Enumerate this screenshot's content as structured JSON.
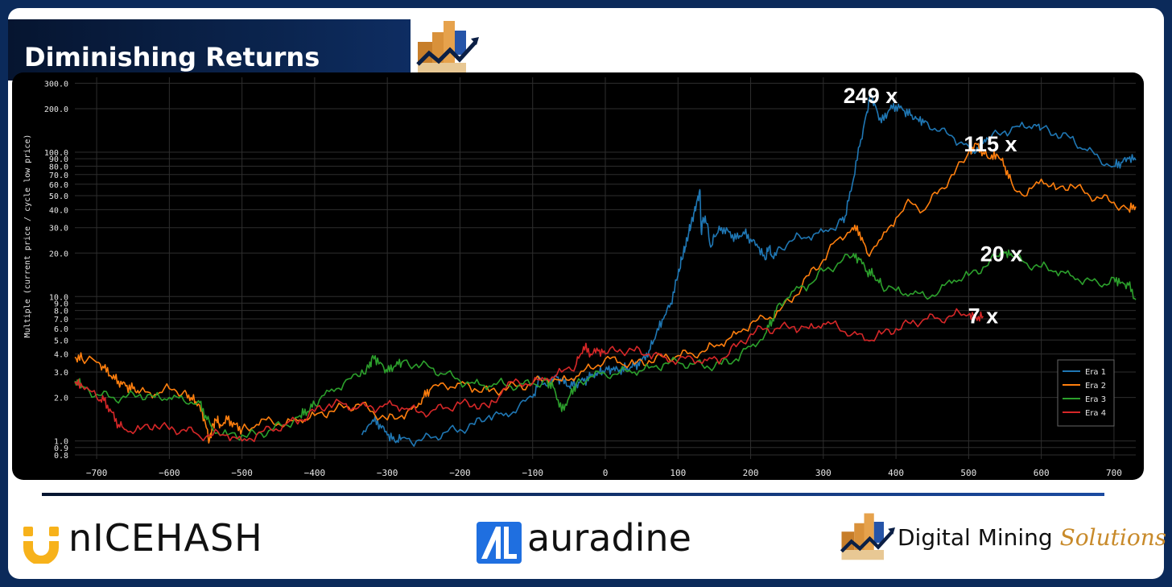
{
  "header": {
    "title": "Diminishing Returns"
  },
  "footer": {
    "nicehash": "nICEHASH",
    "auradine": "auradine",
    "dms_main": "Digital Mining",
    "dms_accent": "Solutions"
  },
  "colors": {
    "era1": "#1f77b4",
    "era2": "#ff7f0e",
    "era3": "#2ca02c",
    "era4": "#d62728"
  },
  "chart_data": {
    "type": "line",
    "ylabel": "Multiple (current price / cycle low price)",
    "xlabel": "",
    "y_scale": "log",
    "xlim": [
      -730,
      730
    ],
    "ylim": [
      0.75,
      330
    ],
    "grid": true,
    "legend_position": "bottom-right",
    "x_ticks": [
      -700,
      -600,
      -500,
      -400,
      -300,
      -200,
      -100,
      0,
      100,
      200,
      300,
      400,
      500,
      600,
      700
    ],
    "x_tick_labels": [
      "−700",
      "−600",
      "−500",
      "−400",
      "−300",
      "−200",
      "−100",
      "0",
      "100",
      "200",
      "300",
      "400",
      "500",
      "600",
      "700"
    ],
    "y_ticks": [
      0.8,
      0.9,
      1,
      2,
      3,
      4,
      5,
      6,
      7,
      8,
      9,
      10,
      20,
      30,
      40,
      50,
      60,
      70,
      80,
      90,
      100,
      200,
      300
    ],
    "y_tick_labels": [
      "0.8",
      "0.9",
      "1.0",
      "2.0",
      "3.0",
      "4.0",
      "5.0",
      "6.0",
      "7.0",
      "8.0",
      "9.0",
      "10.0",
      "20.0",
      "30.0",
      "40.0",
      "50.0",
      "60.0",
      "70.0",
      "80.0",
      "90.0",
      "100.0",
      "200.0",
      "300.0"
    ],
    "annotations": [
      {
        "text": "249 x",
        "x": 365,
        "y": 249
      },
      {
        "text": "115 x",
        "x": 530,
        "y": 115
      },
      {
        "text": "20 x",
        "x": 545,
        "y": 20
      },
      {
        "text": "7 x",
        "x": 520,
        "y": 7.4
      }
    ],
    "series": [
      {
        "name": "Era 1",
        "color": "#1f77b4",
        "x": [
          -335,
          -320,
          -310,
          -300,
          -290,
          -280,
          -260,
          -240,
          -220,
          -200,
          -180,
          -160,
          -140,
          -120,
          -100,
          -90,
          -80,
          -70,
          -60,
          -50,
          -40,
          -30,
          -20,
          -10,
          0,
          10,
          20,
          30,
          40,
          50,
          60,
          70,
          80,
          90,
          100,
          105,
          110,
          115,
          120,
          125,
          130,
          132,
          135,
          140,
          145,
          150,
          160,
          170,
          180,
          190,
          200,
          210,
          220,
          225,
          230,
          240,
          260,
          280,
          300,
          320,
          330,
          340,
          350,
          360,
          365,
          370,
          380,
          390,
          400,
          410,
          420,
          430,
          440,
          460,
          480,
          500,
          510,
          520,
          530,
          550,
          570,
          590,
          600,
          620,
          640,
          660,
          680,
          700,
          710,
          720,
          730
        ],
        "y": [
          1.1,
          1.4,
          1.3,
          1.1,
          1.0,
          1.05,
          1.0,
          1.05,
          1.15,
          1.2,
          1.3,
          1.5,
          1.5,
          1.7,
          2.0,
          2.7,
          2.4,
          2.8,
          2.6,
          2.4,
          2.5,
          2.6,
          2.8,
          3.0,
          3.1,
          3.1,
          3.1,
          3.2,
          3.3,
          3.6,
          4.2,
          5.5,
          7.0,
          9.0,
          14.0,
          18.0,
          22.0,
          28.0,
          35.0,
          42.0,
          55.0,
          28.0,
          35.0,
          32.0,
          22.0,
          26.0,
          30.0,
          28.0,
          25.0,
          28.0,
          25.0,
          22.0,
          18.0,
          22.0,
          19.0,
          22.0,
          25.0,
          26.0,
          28.0,
          32.0,
          36.0,
          60.0,
          110.0,
          190.0,
          249.0,
          220.0,
          160.0,
          195.0,
          210.0,
          195.0,
          180.0,
          170.0,
          165.0,
          140.0,
          125.0,
          110.0,
          100.0,
          115.0,
          125.0,
          140.0,
          150.0,
          155.0,
          145.0,
          135.0,
          125.0,
          105.0,
          90.0,
          80.0,
          85.0,
          90.0,
          88.0
        ]
      },
      {
        "name": "Era 2",
        "color": "#ff7f0e",
        "x": [
          -730,
          -720,
          -700,
          -690,
          -680,
          -670,
          -660,
          -650,
          -640,
          -620,
          -600,
          -580,
          -570,
          -560,
          -550,
          -545,
          -540,
          -535,
          -530,
          -520,
          -510,
          -500,
          -480,
          -460,
          -440,
          -420,
          -400,
          -380,
          -360,
          -340,
          -320,
          -300,
          -280,
          -260,
          -250,
          -240,
          -220,
          -200,
          -180,
          -160,
          -140,
          -120,
          -100,
          -80,
          -60,
          -40,
          -20,
          0,
          20,
          40,
          60,
          80,
          100,
          120,
          140,
          160,
          180,
          200,
          220,
          240,
          260,
          280,
          300,
          320,
          340,
          350,
          360,
          380,
          400,
          420,
          440,
          460,
          480,
          500,
          510,
          520,
          530,
          540,
          550,
          560,
          580,
          600,
          620,
          640,
          660,
          680,
          700,
          720,
          730
        ],
        "y": [
          3.8,
          3.7,
          3.5,
          3.2,
          2.8,
          2.6,
          2.4,
          2.3,
          2.2,
          2.1,
          2.3,
          2.2,
          2.0,
          1.8,
          1.3,
          1.0,
          1.3,
          1.4,
          1.3,
          1.4,
          1.3,
          1.2,
          1.3,
          1.4,
          1.3,
          1.4,
          1.5,
          1.6,
          1.7,
          1.8,
          1.6,
          1.4,
          1.5,
          1.7,
          2.0,
          2.3,
          2.4,
          2.5,
          2.3,
          2.2,
          2.3,
          2.4,
          2.5,
          2.7,
          2.6,
          2.8,
          3.2,
          3.7,
          3.5,
          3.4,
          3.6,
          3.8,
          3.9,
          4.0,
          4.3,
          4.7,
          5.5,
          6.5,
          7.0,
          8.0,
          10.0,
          14.0,
          18.0,
          25.0,
          30.0,
          28.0,
          20.0,
          25.0,
          35.0,
          45.0,
          40.0,
          55.0,
          70.0,
          100.0,
          115.0,
          100.0,
          90.0,
          95.0,
          80.0,
          60.0,
          50.0,
          65.0,
          55.0,
          60.0,
          52.0,
          48.0,
          45.0,
          40.0,
          42.0
        ]
      },
      {
        "name": "Era 3",
        "color": "#2ca02c",
        "x": [
          -730,
          -720,
          -700,
          -680,
          -660,
          -640,
          -620,
          -600,
          -580,
          -560,
          -550,
          -540,
          -520,
          -500,
          -480,
          -460,
          -440,
          -420,
          -410,
          -400,
          -380,
          -360,
          -340,
          -325,
          -320,
          -310,
          -300,
          -290,
          -280,
          -260,
          -240,
          -220,
          -200,
          -180,
          -160,
          -140,
          -120,
          -100,
          -80,
          -70,
          -60,
          -50,
          -40,
          -20,
          0,
          20,
          40,
          60,
          80,
          100,
          120,
          140,
          160,
          180,
          200,
          220,
          230,
          240,
          260,
          280,
          300,
          320,
          340,
          350,
          360,
          370,
          380,
          400,
          420,
          440,
          460,
          480,
          500,
          520,
          540,
          550,
          560,
          580,
          600,
          620,
          640,
          660,
          680,
          700,
          710,
          720,
          730
        ],
        "y": [
          2.6,
          2.4,
          2.1,
          2.0,
          2.0,
          2.1,
          2.0,
          2.0,
          1.9,
          1.9,
          1.5,
          1.2,
          1.1,
          1.1,
          1.1,
          1.2,
          1.3,
          1.5,
          1.6,
          1.8,
          2.2,
          2.5,
          2.8,
          3.2,
          3.9,
          3.5,
          3.0,
          3.3,
          3.5,
          3.4,
          3.2,
          2.9,
          2.6,
          2.5,
          2.4,
          2.5,
          2.4,
          2.5,
          2.6,
          2.3,
          1.6,
          2.0,
          2.5,
          2.8,
          2.9,
          3.0,
          3.0,
          3.2,
          3.4,
          3.5,
          3.4,
          3.3,
          3.4,
          3.7,
          4.5,
          5.5,
          7.0,
          9.0,
          11.0,
          12.0,
          15.0,
          17.0,
          19.0,
          18.0,
          15.0,
          14.0,
          12.0,
          11.0,
          10.5,
          10.0,
          11.0,
          13.0,
          14.0,
          16.0,
          19.0,
          20.0,
          19.0,
          17.0,
          16.0,
          15.0,
          14.0,
          13.0,
          12.0,
          13.5,
          12.5,
          12.0,
          9.5
        ]
      },
      {
        "name": "Era 4",
        "color": "#d62728",
        "x": [
          -730,
          -720,
          -700,
          -690,
          -680,
          -670,
          -660,
          -640,
          -620,
          -600,
          -580,
          -560,
          -540,
          -520,
          -500,
          -480,
          -460,
          -440,
          -420,
          -400,
          -380,
          -360,
          -340,
          -320,
          -300,
          -280,
          -260,
          -240,
          -220,
          -200,
          -180,
          -160,
          -140,
          -120,
          -100,
          -80,
          -60,
          -40,
          -30,
          -20,
          -10,
          0,
          20,
          40,
          60,
          80,
          100,
          120,
          140,
          160,
          180,
          200,
          220,
          240,
          260,
          280,
          300,
          320,
          340,
          360,
          380,
          400,
          420,
          440,
          460,
          480,
          500,
          510,
          520
        ],
        "y": [
          2.5,
          2.4,
          2.0,
          1.9,
          1.6,
          1.3,
          1.2,
          1.2,
          1.3,
          1.2,
          1.2,
          1.1,
          1.1,
          1.1,
          1.0,
          1.1,
          1.2,
          1.3,
          1.4,
          1.6,
          1.8,
          1.8,
          1.7,
          1.7,
          1.8,
          1.7,
          1.6,
          1.6,
          1.7,
          1.8,
          1.8,
          1.7,
          2.3,
          2.6,
          2.5,
          2.7,
          3.0,
          3.4,
          4.5,
          4.0,
          4.2,
          4.0,
          4.3,
          4.2,
          4.0,
          3.8,
          3.6,
          3.7,
          3.6,
          3.7,
          4.5,
          5.5,
          6.0,
          6.0,
          6.2,
          6.0,
          6.5,
          6.2,
          5.5,
          5.0,
          5.5,
          6.0,
          6.5,
          7.0,
          7.0,
          7.5,
          7.5,
          7.2,
          7.3
        ]
      }
    ]
  }
}
